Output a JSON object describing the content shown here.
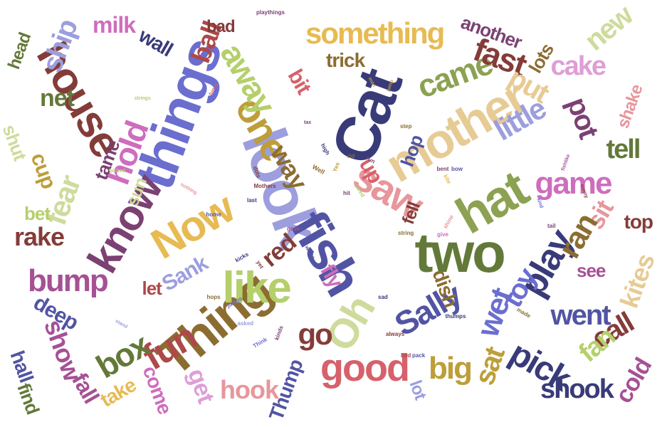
{
  "colors": {
    "background": "#ffffff",
    "palette": [
      "#7b6ad1",
      "#393b79",
      "#5254a3",
      "#6b6ecf",
      "#9c9ede",
      "#637939",
      "#8ca252",
      "#b5cf6b",
      "#cedb9c",
      "#8c6d31",
      "#bd9e39",
      "#e7ba52",
      "#e7cb94",
      "#843c39",
      "#ad494a",
      "#d6616b",
      "#e7969c",
      "#7b4173",
      "#a55194",
      "#ce6dbd",
      "#de9ed6"
    ]
  },
  "words": [
    {
      "text": "Cat",
      "color": "#393b79"
    },
    {
      "text": "look",
      "color": "#9c9ede"
    },
    {
      "text": "things",
      "color": "#6b6ecf"
    },
    {
      "text": "mother",
      "color": "#e7cb94"
    },
    {
      "text": "house",
      "color": "#843c39"
    },
    {
      "text": "fish",
      "color": "#5254a3"
    },
    {
      "text": "Thing",
      "color": "#8c6d31"
    },
    {
      "text": "two",
      "color": "#637939"
    },
    {
      "text": "hat",
      "color": "#8ca252"
    },
    {
      "text": "Now",
      "color": "#e7ba52"
    },
    {
      "text": "know",
      "color": "#7b4173"
    },
    {
      "text": "like",
      "color": "#b5cf6b"
    },
    {
      "text": "Oh",
      "color": "#cedb9c"
    },
    {
      "text": "one",
      "color": "#bd9e39"
    },
    {
      "text": "saw",
      "color": "#e7969c"
    },
    {
      "text": "good",
      "color": "#d6616b"
    },
    {
      "text": "something",
      "color": "#e7ba52"
    },
    {
      "text": "came",
      "color": "#8ca252"
    },
    {
      "text": "fun",
      "color": "#ad494a"
    },
    {
      "text": "bump",
      "color": "#a55194"
    },
    {
      "text": "Sally",
      "color": "#5254a3"
    },
    {
      "text": "play",
      "color": "#393b79"
    },
    {
      "text": "game",
      "color": "#ce6dbd"
    },
    {
      "text": "little",
      "color": "#9c9ede"
    },
    {
      "text": "away",
      "color": "#b5cf6b"
    },
    {
      "text": "box",
      "color": "#637939"
    },
    {
      "text": "pick",
      "color": "#393b79"
    },
    {
      "text": "fast",
      "color": "#843c39"
    },
    {
      "text": "hold",
      "color": "#ce6dbd"
    },
    {
      "text": "ship",
      "color": "#9c9ede"
    },
    {
      "text": "fear",
      "color": "#cedb9c"
    },
    {
      "text": "cake",
      "color": "#de9ed6"
    },
    {
      "text": "new",
      "color": "#cedb9c"
    },
    {
      "text": "put",
      "color": "#e7cb94"
    },
    {
      "text": "pot",
      "color": "#7b4173"
    },
    {
      "text": "ball",
      "color": "#ad494a"
    },
    {
      "text": "milk",
      "color": "#ce6dbd"
    },
    {
      "text": "wall",
      "color": "#393b79"
    },
    {
      "text": "bad",
      "color": "#843c39"
    },
    {
      "text": "net",
      "color": "#637939"
    },
    {
      "text": "cup",
      "color": "#bd9e39"
    },
    {
      "text": "rake",
      "color": "#843c39"
    },
    {
      "text": "bet",
      "color": "#b5cf6b"
    },
    {
      "text": "shut",
      "color": "#cedb9c"
    },
    {
      "text": "head",
      "color": "#637939"
    },
    {
      "text": "tame",
      "color": "#7b4173"
    },
    {
      "text": "way",
      "color": "#8c6d31"
    },
    {
      "text": "bit",
      "color": "#d6616b"
    },
    {
      "text": "trick",
      "color": "#8c6d31"
    },
    {
      "text": "another",
      "color": "#7b4173"
    },
    {
      "text": "lots",
      "color": "#8c6d31"
    },
    {
      "text": "shake",
      "color": "#e7969c"
    },
    {
      "text": "tell",
      "color": "#637939"
    },
    {
      "text": "sit",
      "color": "#e7969c"
    },
    {
      "text": "ran",
      "color": "#8c6d31"
    },
    {
      "text": "top",
      "color": "#843c39"
    },
    {
      "text": "see",
      "color": "#a55194"
    },
    {
      "text": "kites",
      "color": "#e7cb94"
    },
    {
      "text": "went",
      "color": "#5254a3"
    },
    {
      "text": "toy",
      "color": "#6b6ecf"
    },
    {
      "text": "wet",
      "color": "#6b6ecf"
    },
    {
      "text": "call",
      "color": "#843c39"
    },
    {
      "text": "fan",
      "color": "#b5cf6b"
    },
    {
      "text": "cold",
      "color": "#a55194"
    },
    {
      "text": "shook",
      "color": "#393b79"
    },
    {
      "text": "sat",
      "color": "#bd9e39"
    },
    {
      "text": "big",
      "color": "#bd9e39"
    },
    {
      "text": "go",
      "color": "#843c39"
    },
    {
      "text": "red",
      "color": "#843c39"
    },
    {
      "text": "fly",
      "color": "#ce6dbd"
    },
    {
      "text": "dish",
      "color": "#8c6d31"
    },
    {
      "text": "hook",
      "color": "#e7969c"
    },
    {
      "text": "Thump",
      "color": "#5254a3"
    },
    {
      "text": "lot",
      "color": "#9c9ede"
    },
    {
      "text": "get",
      "color": "#de9ed6"
    },
    {
      "text": "come",
      "color": "#ce6dbd"
    },
    {
      "text": "take",
      "color": "#e7ba52"
    },
    {
      "text": "fall",
      "color": "#a55194"
    },
    {
      "text": "show",
      "color": "#a55194"
    },
    {
      "text": "find",
      "color": "#637939"
    },
    {
      "text": "hall",
      "color": "#5254a3"
    },
    {
      "text": "deep",
      "color": "#5254a3"
    },
    {
      "text": "Sank",
      "color": "#9c9ede"
    },
    {
      "text": "let",
      "color": "#ad494a"
    },
    {
      "text": "sun",
      "color": "#cedb9c"
    },
    {
      "text": "up",
      "color": "#d6616b"
    },
    {
      "text": "hop",
      "color": "#5254a3"
    },
    {
      "text": "fell",
      "color": "#843c39"
    },
    {
      "text": "playthings",
      "color": "#7b4173"
    },
    {
      "text": "funny",
      "color": "#d6616b"
    },
    {
      "text": "strings",
      "color": "#b5cf6b"
    },
    {
      "text": "picked",
      "color": "#b5cf6b"
    },
    {
      "text": "nothing",
      "color": "#e7969c"
    },
    {
      "text": "hit",
      "color": "#7b4173"
    },
    {
      "text": "bent",
      "color": "#7b4173"
    },
    {
      "text": "bow",
      "color": "#5254a3"
    },
    {
      "text": "kite",
      "color": "#e7ba52"
    },
    {
      "text": "tail",
      "color": "#7b4173"
    },
    {
      "text": "fishlike",
      "color": "#a55194"
    },
    {
      "text": "sunny",
      "color": "#843c39"
    },
    {
      "text": "kind",
      "color": "#6b6ecf"
    },
    {
      "text": "Well",
      "color": "#8c6d31"
    },
    {
      "text": "Yes",
      "color": "#bd9e39"
    },
    {
      "text": "run",
      "color": "#7b4173"
    },
    {
      "text": "step",
      "color": "#8c6d31"
    },
    {
      "text": "jump",
      "color": "#bd9e39"
    },
    {
      "text": "tax",
      "color": "#7b4173"
    },
    {
      "text": "man",
      "color": "#bd9e39"
    },
    {
      "text": "dots",
      "color": "#843c39"
    },
    {
      "text": "last",
      "color": "#393b79"
    },
    {
      "text": "Mothers",
      "color": "#843c39"
    },
    {
      "text": "home",
      "color": "#5254a3"
    },
    {
      "text": "gave",
      "color": "#a55194"
    },
    {
      "text": "white",
      "color": "#5254a3"
    },
    {
      "text": "string",
      "color": "#8c6d31"
    },
    {
      "text": "give",
      "color": "#ce6dbd"
    },
    {
      "text": "shine",
      "color": "#e7969c"
    },
    {
      "text": "kicks",
      "color": "#393b79"
    },
    {
      "text": "yet",
      "color": "#843c39"
    },
    {
      "text": "hops",
      "color": "#8c6d31"
    },
    {
      "text": "jumps",
      "color": "#6b6ecf"
    },
    {
      "text": "asked",
      "color": "#9c9ede"
    },
    {
      "text": "Think",
      "color": "#6b6ecf"
    },
    {
      "text": "kinds",
      "color": "#7b4173"
    },
    {
      "text": "sad",
      "color": "#393b79"
    },
    {
      "text": "always",
      "color": "#843c39"
    },
    {
      "text": "bed",
      "color": "#ad494a"
    },
    {
      "text": "pack",
      "color": "#5254a3"
    },
    {
      "text": "thumps",
      "color": "#393b79"
    },
    {
      "text": "made",
      "color": "#8c6d31"
    },
    {
      "text": "stand",
      "color": "#9c9ede"
    },
    {
      "text": "weed",
      "color": "#b5cf6b"
    },
    {
      "text": "high",
      "color": "#393b79"
    },
    {
      "text": "rid",
      "color": "#8c6d31"
    }
  ]
}
